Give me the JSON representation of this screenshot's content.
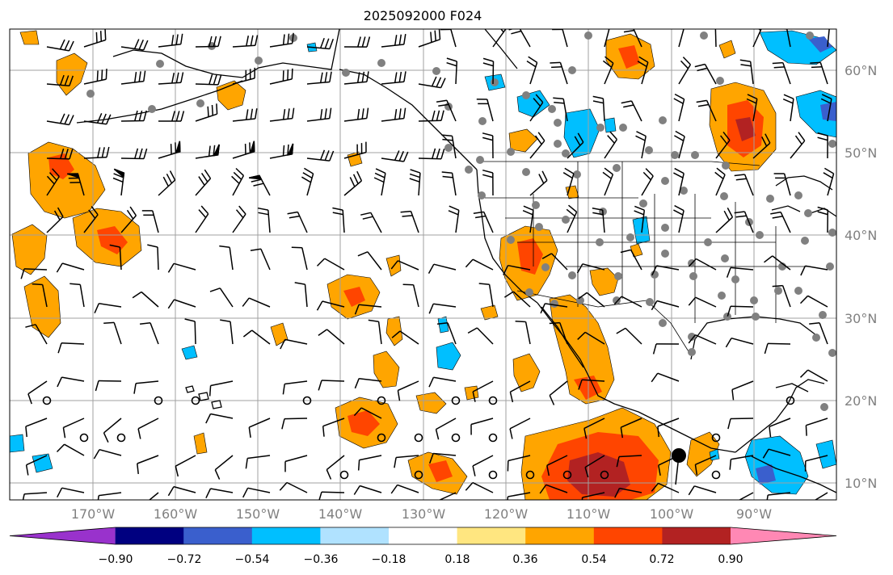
{
  "title": "2025092000 F024",
  "lat_labels": [
    "60°N",
    "50°N",
    "40°N",
    "30°N",
    "20°N",
    "10°N"
  ],
  "lon_labels": [
    "170°W",
    "160°W",
    "150°W",
    "140°W",
    "130°W",
    "120°W",
    "110°W",
    "100°W",
    "90°W"
  ],
  "colorbar": {
    "colors": [
      "#9932cc",
      "#000080",
      "#3a5fcd",
      "#00bfff",
      "#b0e2ff",
      "#ffffff",
      "#ffe680",
      "#ffa500",
      "#ff4500",
      "#b22222",
      "#ff88b4"
    ],
    "labels": [
      "−0.90",
      "−0.72",
      "−0.54",
      "−0.36",
      "−0.18",
      "0.18",
      "0.36",
      "0.54",
      "0.72",
      "0.90"
    ]
  },
  "colors": {
    "grid": "#a0a0a0",
    "coast": "#000000",
    "station_dot": "#808080",
    "orange": "#ffa500",
    "red": "#ff4500",
    "darkred": "#b22222",
    "cyan": "#00bfff",
    "blue": "#3a5fcd"
  }
}
